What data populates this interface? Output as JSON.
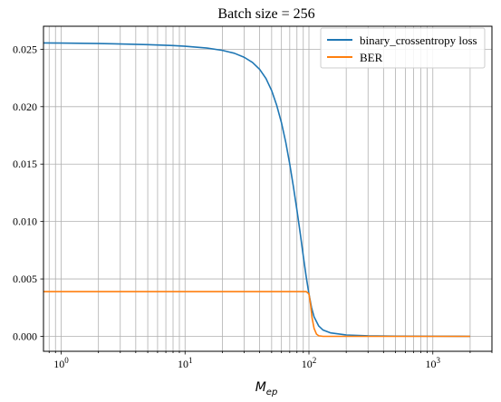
{
  "chart_data": {
    "type": "line",
    "title": "Batch size = 256",
    "xlabel": "M_ep",
    "xlabel_main": "M",
    "xlabel_sub": "ep",
    "ylabel": "",
    "xscale": "log",
    "xlim": [
      0.72,
      3000
    ],
    "ylim": [
      -0.0013,
      0.027
    ],
    "grid": "major and minor (both axes)",
    "legend_position": "top-right",
    "yticks": [
      "0.000",
      "0.005",
      "0.010",
      "0.015",
      "0.020",
      "0.025"
    ],
    "ytick_values": [
      0,
      0.005,
      0.01,
      0.015,
      0.02,
      0.025
    ],
    "xticks": [
      {
        "value": 1,
        "base": "10",
        "exp": "0"
      },
      {
        "value": 10,
        "base": "10",
        "exp": "1"
      },
      {
        "value": 100,
        "base": "10",
        "exp": "2"
      },
      {
        "value": 1000,
        "base": "10",
        "exp": "3"
      }
    ],
    "series": [
      {
        "name": "binary_crossentropy loss",
        "color": "#1f77b4",
        "points": [
          [
            0.72,
            0.02555
          ],
          [
            1,
            0.02554
          ],
          [
            2,
            0.0255
          ],
          [
            3,
            0.02546
          ],
          [
            5,
            0.0254
          ],
          [
            8,
            0.02532
          ],
          [
            10,
            0.02526
          ],
          [
            15,
            0.0251
          ],
          [
            20,
            0.0249
          ],
          [
            25,
            0.02465
          ],
          [
            30,
            0.0243
          ],
          [
            35,
            0.02385
          ],
          [
            40,
            0.02325
          ],
          [
            45,
            0.02245
          ],
          [
            50,
            0.0214
          ],
          [
            55,
            0.0201
          ],
          [
            60,
            0.0186
          ],
          [
            65,
            0.0169
          ],
          [
            70,
            0.015
          ],
          [
            75,
            0.013
          ],
          [
            80,
            0.011
          ],
          [
            85,
            0.009
          ],
          [
            90,
            0.007
          ],
          [
            95,
            0.0052
          ],
          [
            100,
            0.0037
          ],
          [
            105,
            0.0025
          ],
          [
            110,
            0.0017
          ],
          [
            120,
            0.0009
          ],
          [
            130,
            0.00055
          ],
          [
            150,
            0.0003
          ],
          [
            200,
            0.00012
          ],
          [
            300,
            5e-05
          ],
          [
            500,
            2e-05
          ],
          [
            1000,
            1e-05
          ],
          [
            2000,
            0.0
          ]
        ]
      },
      {
        "name": "BER",
        "color": "#ff7f0e",
        "points": [
          [
            0.72,
            0.0039
          ],
          [
            50,
            0.0039
          ],
          [
            95,
            0.0039
          ],
          [
            100,
            0.0037
          ],
          [
            103,
            0.0028
          ],
          [
            106,
            0.0016
          ],
          [
            110,
            0.0007
          ],
          [
            115,
            0.0002
          ],
          [
            120,
            5e-05
          ],
          [
            130,
            0.0
          ],
          [
            500,
            0.0
          ],
          [
            2000,
            0.0
          ]
        ]
      }
    ]
  }
}
